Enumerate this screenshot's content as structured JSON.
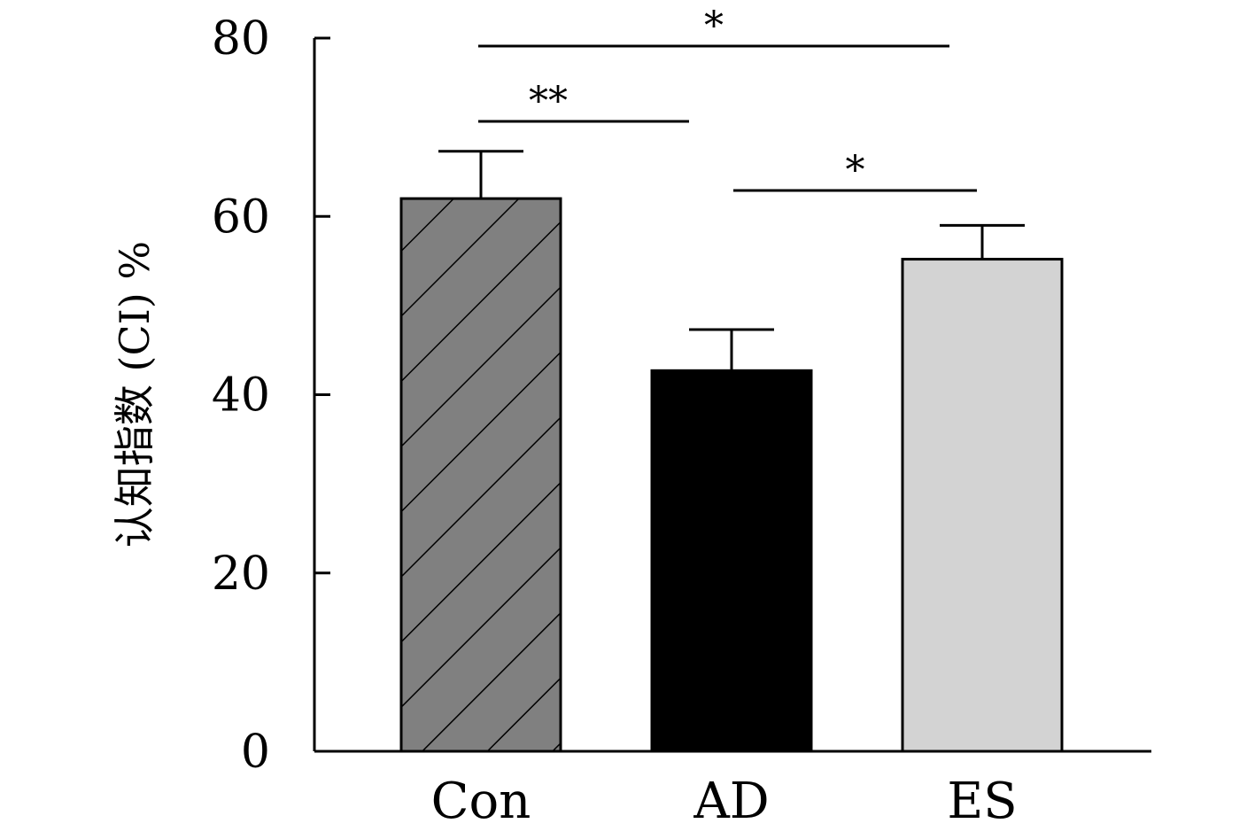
{
  "chart_data": {
    "type": "bar",
    "title": "",
    "xlabel": "",
    "ylabel": "认知指数 (CI) %",
    "ylim": [
      0,
      80
    ],
    "yticks": [
      "0",
      "20",
      "40",
      "60",
      "80"
    ],
    "grid": false,
    "categories": [
      "Con",
      "AD",
      "ES"
    ],
    "values": [
      62,
      42.7,
      55.2
    ],
    "errors": [
      5.3,
      4.6,
      3.8
    ],
    "bar_fills": [
      "#808080",
      "#000000",
      "#d3d3d3"
    ],
    "bar_hatch": [
      "diagonal",
      "none",
      "none"
    ],
    "significance": [
      {
        "from": "Con",
        "to": "ES",
        "label": "*"
      },
      {
        "from": "Con",
        "to": "AD",
        "label": "**"
      },
      {
        "from": "AD",
        "to": "ES",
        "label": "*"
      }
    ]
  }
}
